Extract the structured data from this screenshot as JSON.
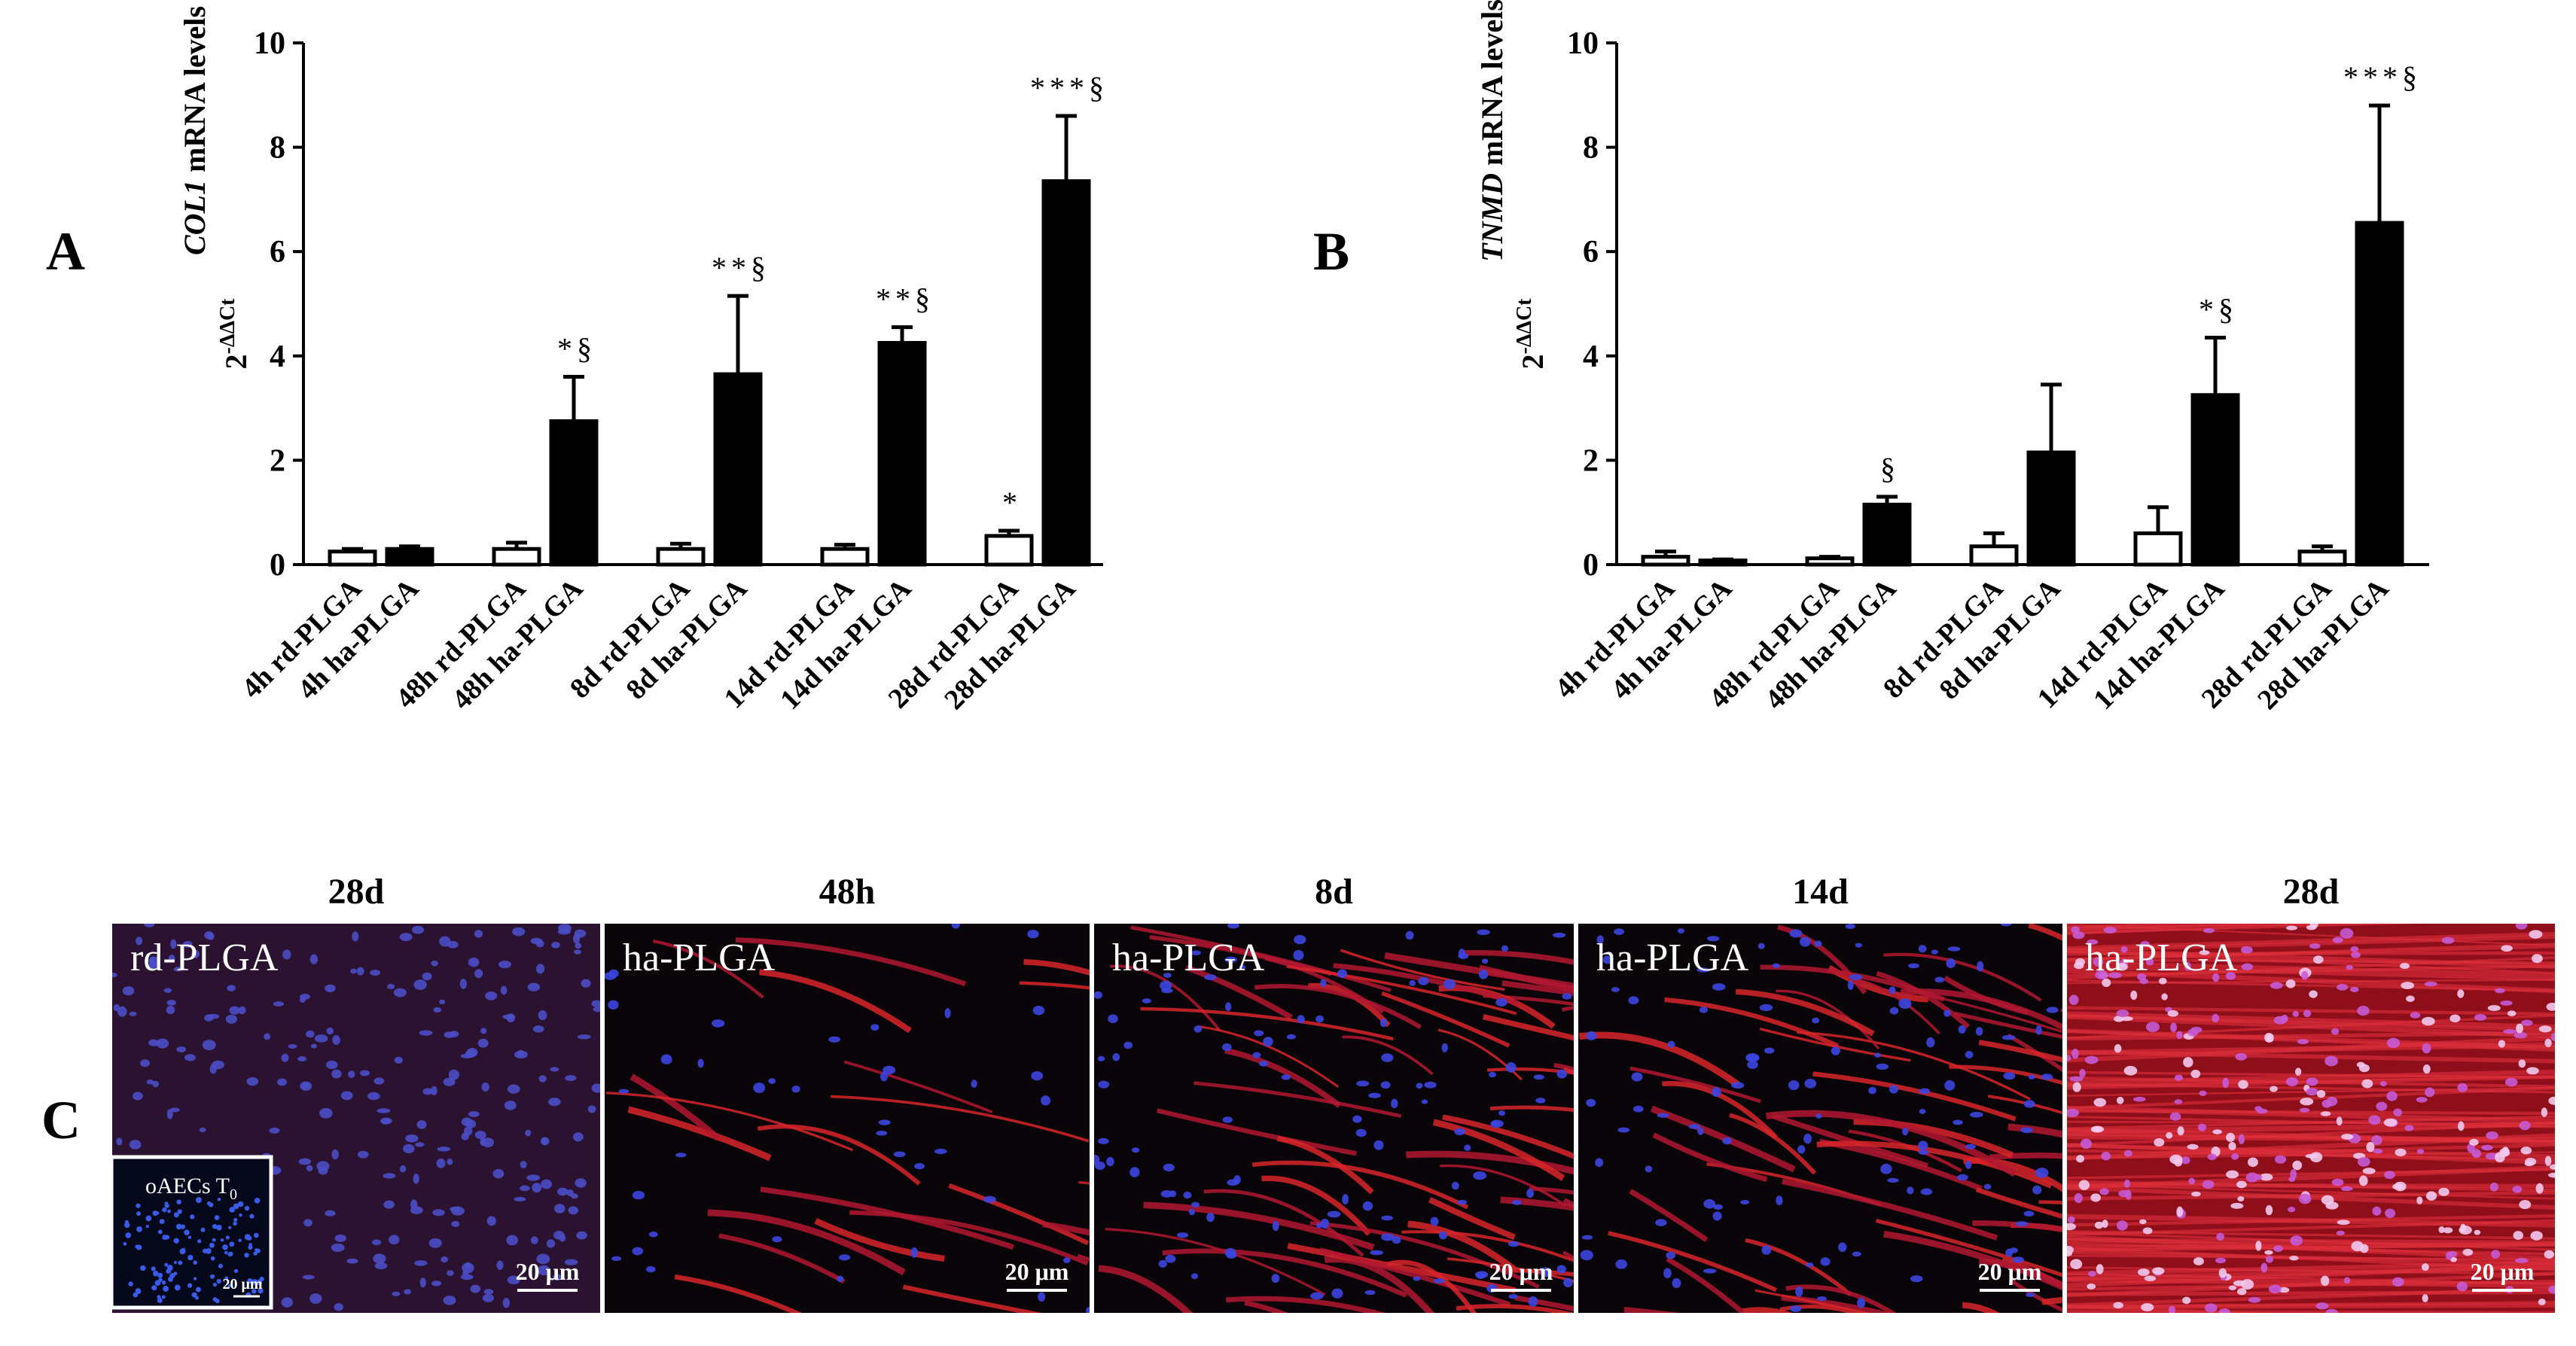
{
  "chart_data": [
    {
      "type": "bar",
      "panel_label": "A",
      "y_label": {
        "base": "2",
        "exponent": "-ΔΔCt",
        "gene": "COL1",
        "text": "mRNA levels"
      },
      "categories": [
        "4h rd-PLGA",
        "4h ha-PLGA",
        "48h rd-PLGA",
        "48h ha-PLGA",
        "8d rd-PLGA",
        "8d ha-PLGA",
        "14d rd-PLGA",
        "14d ha-PLGA",
        "28d rd-PLGA",
        "28d ha-PLGA"
      ],
      "values": [
        0.25,
        0.3,
        0.3,
        2.75,
        0.3,
        3.65,
        0.3,
        4.25,
        0.55,
        7.35
      ],
      "errors": [
        0.05,
        0.05,
        0.12,
        0.85,
        0.1,
        1.5,
        0.08,
        0.3,
        0.1,
        1.25
      ],
      "colors": [
        "#ffffff",
        "#000000",
        "#ffffff",
        "#000000",
        "#ffffff",
        "#000000",
        "#ffffff",
        "#000000",
        "#ffffff",
        "#000000"
      ],
      "annotations": [
        null,
        null,
        null,
        "*§",
        null,
        "**§",
        null,
        "**§",
        "*",
        "***§"
      ],
      "ylim": [
        0,
        10
      ],
      "yticks": [
        0,
        2,
        4,
        6,
        8,
        10
      ]
    },
    {
      "type": "bar",
      "panel_label": "B",
      "y_label": {
        "base": "2",
        "exponent": "-ΔΔCt",
        "gene": "TNMD",
        "text": "mRNA levels"
      },
      "categories": [
        "4h rd-PLGA",
        "4h ha-PLGA",
        "48h rd-PLGA",
        "48h ha-PLGA",
        "8d rd-PLGA",
        "8d ha-PLGA",
        "14d rd-PLGA",
        "14d ha-PLGA",
        "28d rd-PLGA",
        "28d ha-PLGA"
      ],
      "values": [
        0.15,
        0.08,
        0.12,
        1.15,
        0.35,
        2.15,
        0.6,
        3.25,
        0.25,
        6.55
      ],
      "errors": [
        0.1,
        0.02,
        0.03,
        0.15,
        0.25,
        1.3,
        0.5,
        1.1,
        0.1,
        2.25
      ],
      "colors": [
        "#ffffff",
        "#000000",
        "#ffffff",
        "#000000",
        "#ffffff",
        "#000000",
        "#ffffff",
        "#000000",
        "#ffffff",
        "#000000"
      ],
      "annotations": [
        null,
        null,
        null,
        "§",
        null,
        null,
        null,
        "*§",
        null,
        "***§"
      ],
      "ylim": [
        0,
        10
      ],
      "yticks": [
        0,
        2,
        4,
        6,
        8,
        10
      ]
    }
  ],
  "images": {
    "panel_label": "C",
    "items": [
      {
        "time": "28d",
        "label": "rd-PLGA",
        "scale_bar": "20 μm"
      },
      {
        "time": "48h",
        "label": "ha-PLGA",
        "scale_bar": "20 μm"
      },
      {
        "time": "8d",
        "label": "ha-PLGA",
        "scale_bar": "20 μm"
      },
      {
        "time": "14d",
        "label": "ha-PLGA",
        "scale_bar": "20 μm"
      },
      {
        "time": "28d",
        "label": "ha-PLGA",
        "scale_bar": "20 μm"
      }
    ],
    "inset": {
      "label": "oAECs T",
      "subscript": "0",
      "scale_bar": "20 μm"
    }
  }
}
